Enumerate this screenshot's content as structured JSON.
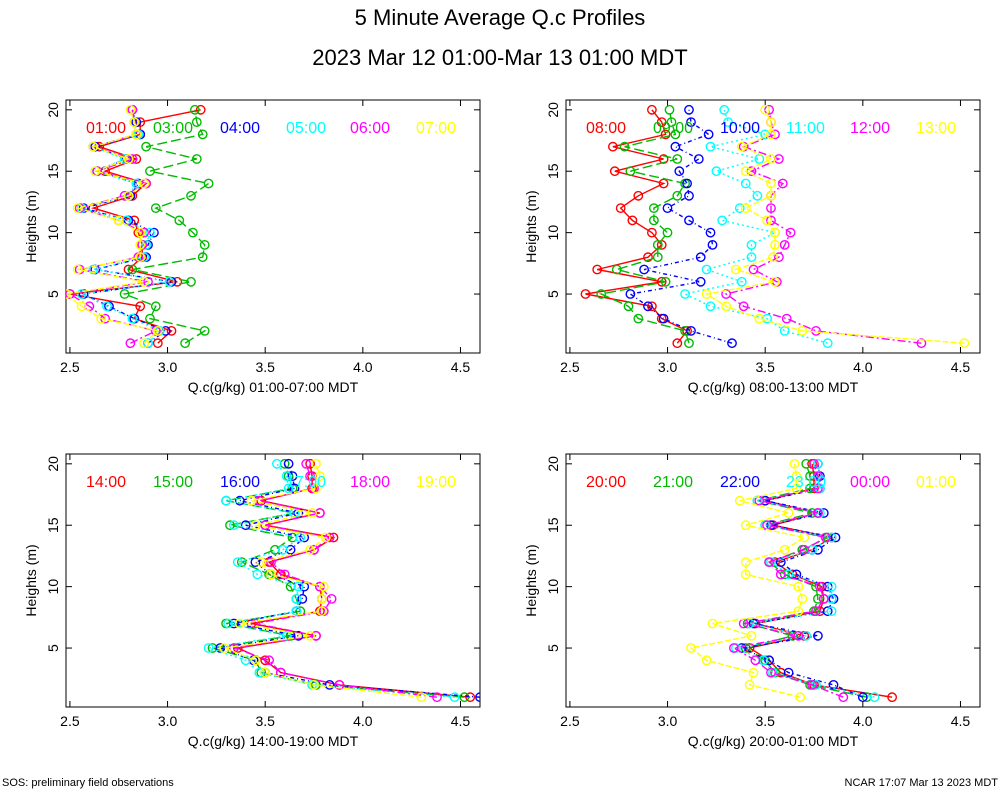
{
  "title": "5 Minute Average Q.c Profiles",
  "subtitle": "2023 Mar 12 01:00-Mar 13 01:00 MDT",
  "footer_left": "SOS: preliminary field observations",
  "footer_right": "NCAR 17:07 Mar 13 2023 MDT",
  "chart_data": [
    {
      "type": "line",
      "xlabel": "Q.c(g/kg) 01:00-07:00 MDT",
      "ylabel": "Heights (m)",
      "xlim": [
        2.48,
        4.6
      ],
      "ylim": [
        0.2,
        20.8
      ],
      "xticks": [
        2.5,
        3.0,
        3.5,
        4.0,
        4.5
      ],
      "yticks": [
        5,
        10,
        15,
        20
      ],
      "heights": [
        1,
        2,
        3,
        4,
        5,
        6,
        7,
        8,
        9,
        10,
        11,
        12,
        13,
        14,
        15,
        16,
        17,
        18,
        19,
        20
      ],
      "series": [
        {
          "name": "01:00",
          "color": "#ff0000",
          "values": [
            2.95,
            3.02,
            2.83,
            2.86,
            2.5,
            3.05,
            2.8,
            2.87,
            2.87,
            2.85,
            2.83,
            2.62,
            2.82,
            2.89,
            2.68,
            2.84,
            2.65,
            2.86,
            2.86,
            3.17
          ]
        },
        {
          "name": "03:00",
          "color": "#00bb00",
          "values": [
            3.09,
            3.19,
            2.91,
            2.94,
            2.78,
            3.12,
            2.82,
            3.18,
            3.19,
            3.13,
            3.06,
            2.94,
            3.12,
            3.21,
            2.91,
            3.15,
            2.89,
            3.18,
            3.15,
            3.14
          ]
        },
        {
          "name": "04:00",
          "color": "#0000ff",
          "values": [
            2.9,
            2.99,
            2.83,
            2.7,
            2.57,
            3.02,
            2.63,
            2.89,
            2.9,
            2.93,
            2.8,
            2.57,
            2.81,
            2.85,
            2.64,
            2.79,
            2.63,
            2.86,
            2.84,
            2.82
          ]
        },
        {
          "name": "05:00",
          "color": "#00ffff",
          "values": [
            2.9,
            2.96,
            2.82,
            2.69,
            2.56,
            3.01,
            2.62,
            2.88,
            2.89,
            2.91,
            2.79,
            2.56,
            2.8,
            2.84,
            2.63,
            2.78,
            2.62,
            2.85,
            2.83,
            2.82
          ]
        },
        {
          "name": "06:00",
          "color": "#ff00ff",
          "values": [
            2.81,
            2.94,
            2.68,
            2.6,
            2.5,
            2.9,
            2.55,
            2.85,
            2.87,
            2.88,
            2.75,
            2.55,
            2.78,
            2.89,
            2.64,
            2.82,
            2.62,
            2.84,
            2.83,
            2.82
          ]
        },
        {
          "name": "07:00",
          "color": "#ffff00",
          "values": [
            2.88,
            2.95,
            2.66,
            2.56,
            2.48,
            2.88,
            2.54,
            2.86,
            2.86,
            2.86,
            2.75,
            2.54,
            2.8,
            2.88,
            2.63,
            2.8,
            2.62,
            2.84,
            2.83,
            2.81
          ]
        }
      ]
    },
    {
      "type": "line",
      "xlabel": "Q.c(g/kg) 08:00-13:00 MDT",
      "ylabel": "Heights (m)",
      "xlim": [
        2.48,
        4.6
      ],
      "ylim": [
        0.2,
        20.8
      ],
      "xticks": [
        2.5,
        3.0,
        3.5,
        4.0,
        4.5
      ],
      "yticks": [
        5,
        10,
        15,
        20
      ],
      "heights": [
        1,
        2,
        3,
        4,
        5,
        6,
        7,
        8,
        9,
        10,
        11,
        12,
        13,
        14,
        15,
        16,
        17,
        18,
        19,
        20
      ],
      "series": [
        {
          "name": "08:00",
          "color": "#ff0000",
          "values": [
            3.05,
            3.1,
            2.97,
            2.92,
            2.58,
            2.97,
            2.64,
            2.9,
            2.97,
            2.92,
            2.82,
            2.76,
            2.85,
            2.98,
            2.73,
            2.98,
            2.72,
            2.99,
            2.97,
            2.92
          ]
        },
        {
          "name": "09:00",
          "color": "#00bb00",
          "values": [
            3.11,
            3.09,
            2.85,
            2.8,
            2.66,
            2.99,
            2.74,
            2.95,
            2.95,
            3.0,
            2.93,
            2.93,
            3.05,
            3.09,
            2.81,
            3.05,
            2.78,
            3.04,
            3.02,
            3.01
          ]
        },
        {
          "name": "10:00",
          "color": "#0000ff",
          "values": [
            3.33,
            3.12,
            2.98,
            2.9,
            2.81,
            3.17,
            2.88,
            3.17,
            3.23,
            3.22,
            3.11,
            3.0,
            3.11,
            3.1,
            3.06,
            3.16,
            3.04,
            3.21,
            3.12,
            3.11
          ]
        },
        {
          "name": "11:00",
          "color": "#00ffff",
          "values": [
            3.82,
            3.6,
            3.51,
            3.22,
            3.09,
            3.38,
            3.2,
            3.43,
            3.43,
            3.55,
            3.28,
            3.37,
            3.46,
            3.4,
            3.25,
            3.47,
            3.22,
            3.5,
            3.31,
            3.29
          ]
        },
        {
          "name": "12:00",
          "color": "#ff00ff",
          "values": [
            4.3,
            3.76,
            3.61,
            3.39,
            3.3,
            3.56,
            3.44,
            3.57,
            3.6,
            3.63,
            3.53,
            3.53,
            3.53,
            3.59,
            3.43,
            3.57,
            3.39,
            3.55,
            3.53,
            3.52
          ]
        },
        {
          "name": "13:00",
          "color": "#ffff00",
          "values": [
            4.52,
            3.69,
            3.47,
            3.3,
            3.2,
            3.55,
            3.35,
            3.54,
            3.55,
            3.55,
            3.51,
            3.4,
            3.53,
            3.53,
            3.4,
            3.53,
            3.38,
            3.53,
            3.53,
            3.5
          ]
        }
      ]
    },
    {
      "type": "line",
      "xlabel": "Q.c(g/kg) 14:00-19:00 MDT",
      "ylabel": "Heights (m)",
      "xlim": [
        2.48,
        4.6
      ],
      "ylim": [
        0.2,
        20.8
      ],
      "xticks": [
        2.5,
        3.0,
        3.5,
        4.0,
        4.5
      ],
      "yticks": [
        5,
        10,
        15,
        20
      ],
      "heights": [
        1,
        2,
        3,
        4,
        5,
        6,
        7,
        8,
        9,
        10,
        11,
        12,
        13,
        14,
        15,
        16,
        17,
        18,
        19,
        20
      ],
      "series": [
        {
          "name": "14:00",
          "color": "#ff0000",
          "values": [
            4.55,
            3.88,
            3.58,
            3.5,
            3.36,
            3.76,
            3.43,
            3.78,
            3.79,
            3.78,
            3.58,
            3.52,
            3.75,
            3.85,
            3.5,
            3.78,
            3.48,
            3.74,
            3.74,
            3.73
          ]
        },
        {
          "name": "15:00",
          "color": "#00bb00",
          "values": [
            4.52,
            3.76,
            3.48,
            3.45,
            3.23,
            3.63,
            3.3,
            3.68,
            3.66,
            3.63,
            3.52,
            3.38,
            3.55,
            3.64,
            3.32,
            3.65,
            3.3,
            3.64,
            3.62,
            3.6
          ]
        },
        {
          "name": "16:00",
          "color": "#0000ff",
          "values": [
            4.6,
            3.83,
            3.5,
            3.44,
            3.27,
            3.67,
            3.34,
            3.66,
            3.69,
            3.7,
            3.53,
            3.45,
            3.63,
            3.7,
            3.4,
            3.67,
            3.37,
            3.65,
            3.64,
            3.62
          ]
        },
        {
          "name": "17:00",
          "color": "#00ffff",
          "values": [
            4.47,
            3.74,
            3.47,
            3.4,
            3.21,
            3.61,
            3.31,
            3.66,
            3.66,
            3.67,
            3.46,
            3.36,
            3.59,
            3.68,
            3.34,
            3.65,
            3.3,
            3.62,
            3.61,
            3.56
          ]
        },
        {
          "name": "18:00",
          "color": "#ff00ff",
          "values": [
            4.38,
            3.88,
            3.58,
            3.52,
            3.34,
            3.76,
            3.45,
            3.8,
            3.84,
            3.78,
            3.6,
            3.53,
            3.75,
            3.83,
            3.5,
            3.78,
            3.47,
            3.75,
            3.73,
            3.71
          ]
        },
        {
          "name": "19:00",
          "color": "#ffff00",
          "values": [
            4.3,
            3.75,
            3.5,
            3.45,
            3.29,
            3.73,
            3.37,
            3.79,
            3.79,
            3.8,
            3.53,
            3.48,
            3.73,
            3.81,
            3.45,
            3.74,
            3.43,
            3.76,
            3.78,
            3.76
          ]
        }
      ]
    },
    {
      "type": "line",
      "xlabel": "Q.c(g/kg) 20:00-01:00 MDT",
      "ylabel": "Heights (m)",
      "xlim": [
        2.48,
        4.6
      ],
      "ylim": [
        0.2,
        20.8
      ],
      "xticks": [
        2.5,
        3.0,
        3.5,
        4.0,
        4.5
      ],
      "yticks": [
        5,
        10,
        15,
        20
      ],
      "heights": [
        1,
        2,
        3,
        4,
        5,
        6,
        7,
        8,
        9,
        10,
        11,
        12,
        13,
        14,
        15,
        16,
        17,
        18,
        19,
        20
      ],
      "series": [
        {
          "name": "20:00",
          "color": "#ff0000",
          "values": [
            4.15,
            3.75,
            3.58,
            3.52,
            3.42,
            3.7,
            3.45,
            3.78,
            3.8,
            3.79,
            3.64,
            3.55,
            3.74,
            3.84,
            3.54,
            3.77,
            3.5,
            3.75,
            3.75,
            3.74
          ]
        },
        {
          "name": "21:00",
          "color": "#00bb00",
          "values": [
            4.02,
            3.73,
            3.55,
            3.5,
            3.4,
            3.64,
            3.41,
            3.75,
            3.77,
            3.76,
            3.6,
            3.52,
            3.69,
            3.82,
            3.5,
            3.74,
            3.46,
            3.73,
            3.73,
            3.71
          ]
        },
        {
          "name": "22:00",
          "color": "#0000ff",
          "values": [
            4.0,
            3.85,
            3.62,
            3.52,
            3.38,
            3.77,
            3.44,
            3.82,
            3.85,
            3.82,
            3.66,
            3.58,
            3.77,
            3.86,
            3.53,
            3.8,
            3.5,
            3.78,
            3.78,
            3.77
          ]
        },
        {
          "name": "23:00",
          "color": "#00ffff",
          "values": [
            4.06,
            3.76,
            3.54,
            3.49,
            3.35,
            3.71,
            3.42,
            3.84,
            3.84,
            3.84,
            3.62,
            3.53,
            3.74,
            3.84,
            3.5,
            3.78,
            3.46,
            3.78,
            3.77,
            3.77
          ]
        },
        {
          "name": "00:00",
          "color": "#ff00ff",
          "values": [
            3.9,
            3.74,
            3.53,
            3.45,
            3.34,
            3.67,
            3.39,
            3.76,
            3.8,
            3.78,
            3.58,
            3.52,
            3.7,
            3.81,
            3.51,
            3.77,
            3.47,
            3.77,
            3.77,
            3.75
          ]
        },
        {
          "name": "01:00",
          "color": "#ffff00",
          "values": [
            3.68,
            3.42,
            3.44,
            3.2,
            3.12,
            3.43,
            3.23,
            3.67,
            3.69,
            3.67,
            3.4,
            3.4,
            3.6,
            3.7,
            3.4,
            3.62,
            3.37,
            3.66,
            3.66,
            3.65
          ]
        }
      ]
    }
  ]
}
